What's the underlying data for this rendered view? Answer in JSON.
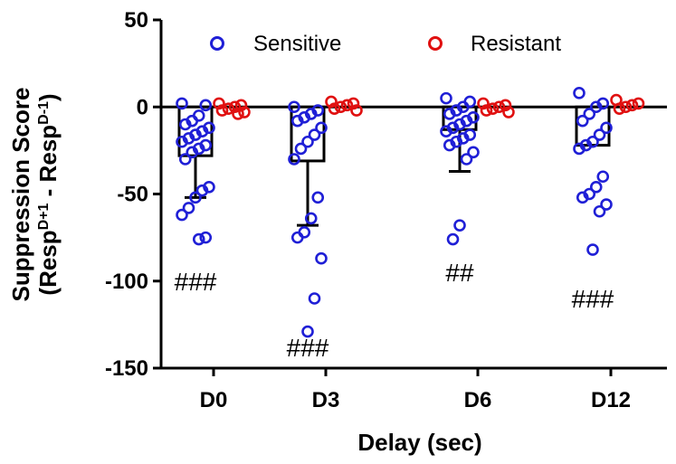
{
  "chart_data": {
    "type": "bar",
    "title": "",
    "xlabel": "Delay (sec)",
    "ylabel_line1": "Suppression Score",
    "ylabel_line2": {
      "resp1": "(Resp",
      "sup1": "D+1",
      "middle": " - Resp",
      "sup2": "D-1",
      "close": ")"
    },
    "ylim": [
      -150,
      50
    ],
    "yticks": [
      50,
      0,
      -50,
      -100,
      -150
    ],
    "categories": [
      "D0",
      "D3",
      "D6",
      "D12"
    ],
    "legend_position": "top",
    "series": [
      {
        "name": "Sensitive",
        "color": "#1f1fd6",
        "marker": "open-circle",
        "bar_mean": [
          -28,
          -31,
          -13,
          -22
        ],
        "error_sd": [
          24,
          37,
          24,
          0
        ],
        "points": [
          [
            2,
            1,
            -5,
            -8,
            -10,
            -12,
            -14,
            -16,
            -18,
            -20,
            -22,
            -24,
            -26,
            -30,
            -46,
            -48,
            -52,
            -58,
            -62,
            -75,
            -76
          ],
          [
            0,
            -2,
            -4,
            -6,
            -8,
            -12,
            -16,
            -20,
            -24,
            -30,
            -52,
            -64,
            -72,
            -75,
            -87,
            -110,
            -129
          ],
          [
            5,
            3,
            0,
            -2,
            -4,
            -6,
            -8,
            -10,
            -12,
            -14,
            -16,
            -18,
            -20,
            -22,
            -26,
            -30,
            -68,
            -76
          ],
          [
            8,
            2,
            0,
            -4,
            -8,
            -12,
            -16,
            -20,
            -22,
            -24,
            -40,
            -46,
            -50,
            -52,
            -56,
            -60,
            -82
          ]
        ]
      },
      {
        "name": "Resistant",
        "color": "#e01010",
        "marker": "open-circle",
        "bar_mean": [
          0,
          0,
          0,
          0
        ],
        "points": [
          [
            2,
            1,
            0,
            -1,
            -2,
            -3,
            -4
          ],
          [
            3,
            2,
            1,
            0,
            -1,
            -2
          ],
          [
            2,
            1,
            0,
            -1,
            -2,
            -3
          ],
          [
            4,
            2,
            1,
            0,
            -1
          ]
        ]
      }
    ],
    "annotations": [
      {
        "category": "D0",
        "text": "###",
        "y": -100
      },
      {
        "category": "D3",
        "text": "###",
        "y": -138
      },
      {
        "category": "D6",
        "text": "##",
        "y": -95
      },
      {
        "category": "D12",
        "text": "###",
        "y": -110
      }
    ]
  }
}
